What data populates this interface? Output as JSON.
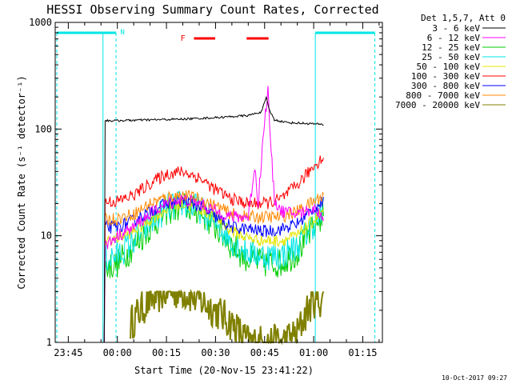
{
  "chart_data": {
    "type": "line",
    "title": "HESSI Observing Summary Count Rates, Corrected",
    "ylabel": "Corrected Count Rate (s⁻¹ detector⁻¹)",
    "xlabel": "Start Time (20-Nov-15 23:41:22)",
    "y_scale": "log",
    "ylim": [
      1,
      1000
    ],
    "xlim_minutes": [
      -19,
      81
    ],
    "y_ticks": [
      {
        "v": 1,
        "label": "1"
      },
      {
        "v": 10,
        "label": "10"
      },
      {
        "v": 100,
        "label": "100"
      },
      {
        "v": 1000,
        "label": "1000"
      }
    ],
    "x_ticks": [
      {
        "v": -15,
        "label": "23:45"
      },
      {
        "v": 0,
        "label": "00:00"
      },
      {
        "v": 15,
        "label": "00:15"
      },
      {
        "v": 30,
        "label": "00:30"
      },
      {
        "v": 45,
        "label": "00:45"
      },
      {
        "v": 60,
        "label": "01:00"
      },
      {
        "v": 75,
        "label": "01:15"
      }
    ],
    "legend_title": "Det 1,5,7, Att 0",
    "legend_placement": "right",
    "series": [
      {
        "name": "3 - 6 keV",
        "color": "#000000",
        "x": [
          -4,
          -3.9,
          0,
          10,
          20,
          30,
          40,
          44,
          45.5,
          46.5,
          48,
          52,
          60,
          63,
          63.1
        ],
        "y": [
          1,
          120,
          120,
          122,
          124,
          128,
          134,
          145,
          195,
          150,
          122,
          115,
          112,
          110,
          70
        ]
      },
      {
        "name": "6 - 12 keV",
        "color": "#ff00ff",
        "x": [
          -4,
          -3.9,
          0,
          5,
          10,
          15,
          20,
          25,
          30,
          35,
          40,
          42,
          43,
          44,
          45,
          46,
          47,
          48,
          50,
          55,
          60,
          63
        ],
        "y": [
          1,
          8,
          10,
          12,
          16,
          20,
          22,
          20,
          17,
          15,
          15,
          45,
          20,
          50,
          120,
          230,
          60,
          22,
          17,
          16,
          18,
          15
        ]
      },
      {
        "name": "12 - 25 keV",
        "color": "#00cc00",
        "x": [
          -4,
          -3.9,
          0,
          5,
          10,
          15,
          20,
          25,
          30,
          35,
          40,
          45,
          50,
          55,
          60,
          63
        ],
        "y": [
          1,
          5,
          5.5,
          8,
          12,
          17,
          19,
          17,
          12,
          8,
          6,
          5.5,
          5.5,
          7,
          12,
          16
        ]
      },
      {
        "name": "25 - 50 keV",
        "color": "#00e6e6",
        "x": [
          -4,
          -3.9,
          0,
          5,
          10,
          15,
          20,
          25,
          30,
          35,
          40,
          45,
          50,
          55,
          60,
          63
        ],
        "y": [
          1,
          6,
          6.5,
          9,
          13,
          18,
          20,
          18,
          13,
          9,
          7,
          6.5,
          6.5,
          8,
          13,
          17
        ]
      },
      {
        "name": "50 - 100 keV",
        "color": "#e6e600",
        "x": [
          -4,
          -3.9,
          0,
          5,
          10,
          15,
          20,
          25,
          30,
          35,
          40,
          45,
          50,
          55,
          60,
          63
        ],
        "y": [
          1,
          9,
          9.5,
          11,
          14,
          18,
          20,
          18,
          15,
          11,
          9.5,
          9,
          9,
          10,
          14,
          17
        ]
      },
      {
        "name": "100 - 300 keV",
        "color": "#ff0000",
        "x": [
          -4,
          -3.9,
          0,
          5,
          10,
          15,
          20,
          25,
          30,
          35,
          40,
          45,
          50,
          55,
          58,
          60,
          63
        ],
        "y": [
          1,
          21,
          21,
          24,
          31,
          38,
          40,
          35,
          27,
          22,
          20,
          20,
          22,
          30,
          38,
          45,
          55
        ]
      },
      {
        "name": "300 - 800 keV",
        "color": "#0000ff",
        "x": [
          -4,
          -3.9,
          0,
          5,
          10,
          15,
          20,
          25,
          30,
          35,
          40,
          45,
          50,
          55,
          60,
          63
        ],
        "y": [
          1,
          12,
          12,
          14,
          17,
          20,
          21,
          19,
          15,
          12,
          11.5,
          11,
          11.5,
          13,
          18,
          21
        ]
      },
      {
        "name": "800 - 7000 keV",
        "color": "#ff8800",
        "x": [
          -4,
          -3.9,
          0,
          5,
          10,
          15,
          20,
          25,
          30,
          35,
          40,
          45,
          50,
          55,
          60,
          63
        ],
        "y": [
          1,
          14,
          14.5,
          16,
          20,
          23,
          24,
          22,
          19,
          16,
          15,
          15,
          15,
          17,
          21,
          24
        ]
      },
      {
        "name": "7000 - 20000 keV",
        "color": "#808000",
        "x": [
          4,
          7,
          10,
          15,
          20,
          25,
          30,
          35,
          40,
          45,
          50,
          55,
          58,
          60,
          63
        ],
        "y": [
          1.5,
          2,
          2.5,
          3,
          3,
          2.5,
          2,
          1.5,
          1,
          1,
          1,
          1.2,
          2,
          2.5,
          2.5
        ]
      }
    ],
    "annotations": [
      {
        "label": "N",
        "color": "#00e6e6"
      },
      {
        "label": "F",
        "color": "#ff0000"
      }
    ],
    "night_bar_color": "#00e6e6",
    "flare_bar_color": "#ff0000"
  },
  "footer": {
    "date_stamp": "10-Oct-2017 09:27"
  }
}
